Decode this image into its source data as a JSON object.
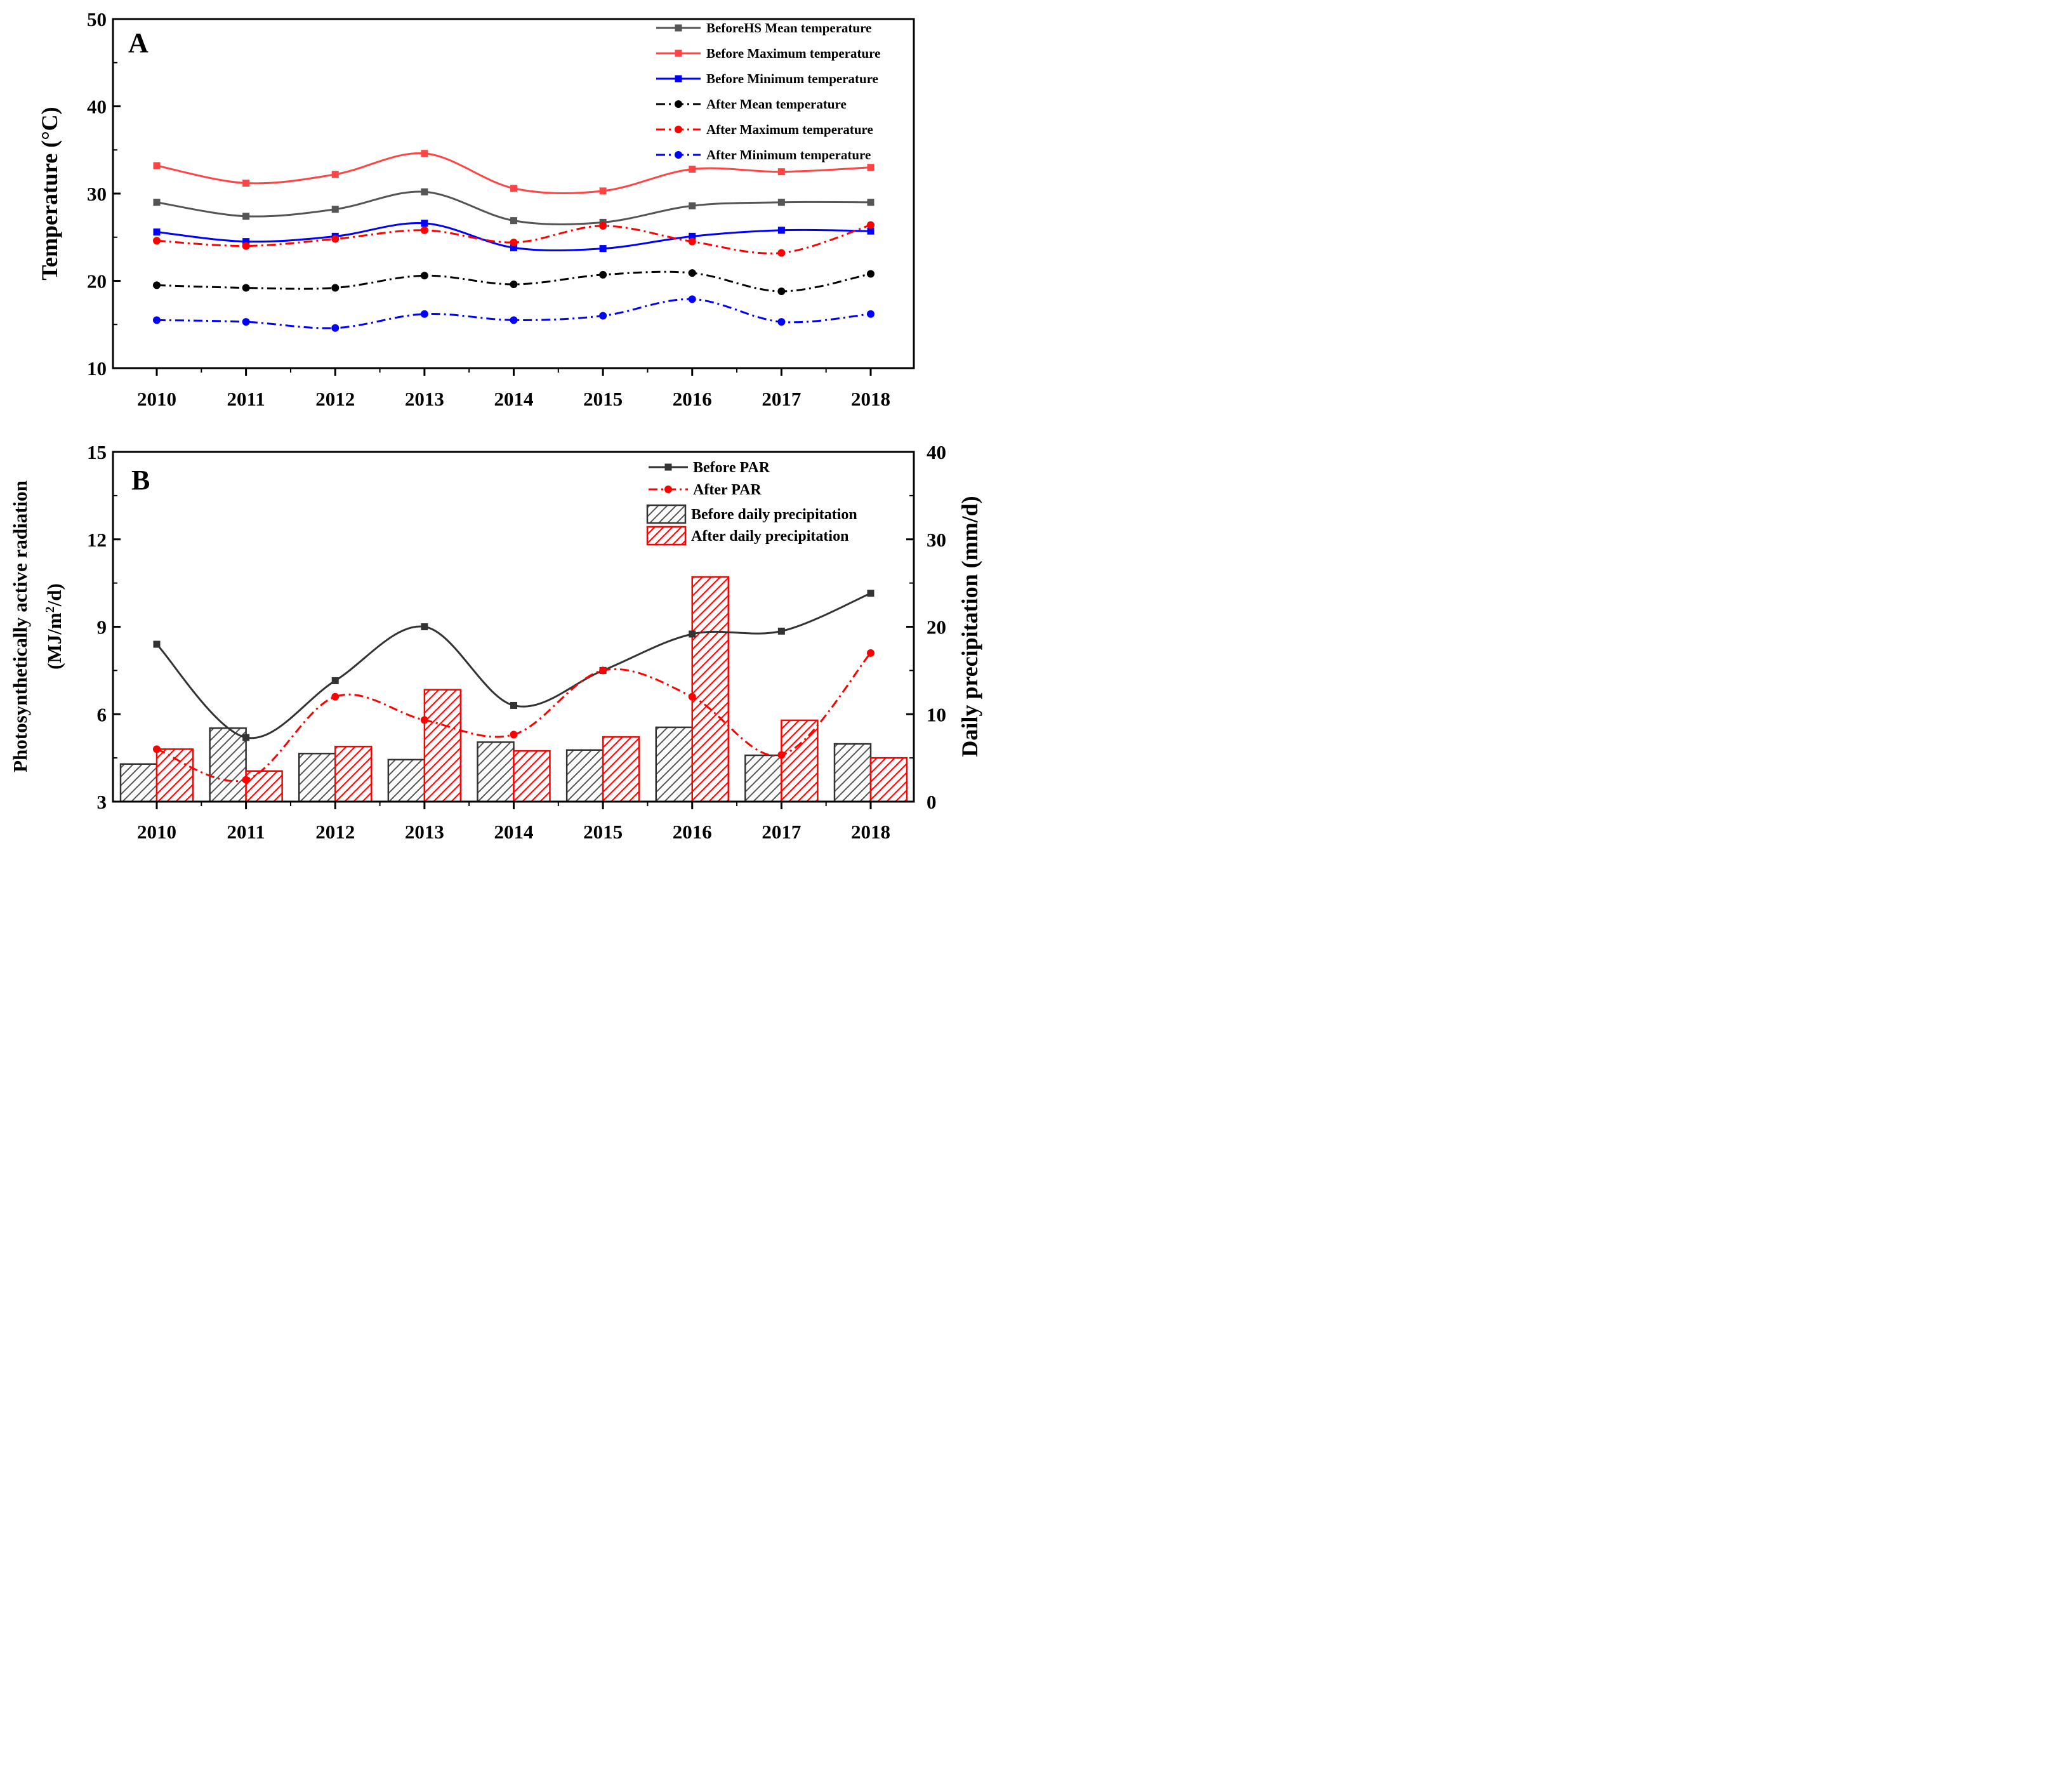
{
  "chart_data": [
    {
      "type": "line",
      "panel_label": "A",
      "ylabel": "Temperature (°C)",
      "ylim": [
        10,
        50
      ],
      "yticks": [
        "10",
        "20",
        "30",
        "40",
        "50"
      ],
      "categories": [
        "2010",
        "2011",
        "2012",
        "2013",
        "2014",
        "2015",
        "2016",
        "2017",
        "2018"
      ],
      "series": [
        {
          "name": "BeforeHS Mean temperature",
          "color": "#555555",
          "marker": "square",
          "style": "solid",
          "values": [
            29.0,
            27.4,
            28.2,
            30.2,
            26.9,
            26.7,
            28.6,
            29.0,
            29.0
          ]
        },
        {
          "name": "Before Maximum temperature",
          "color": "#ff4444",
          "marker": "square",
          "style": "solid",
          "values": [
            33.2,
            31.2,
            32.2,
            34.6,
            30.6,
            30.3,
            32.8,
            32.5,
            33.0
          ]
        },
        {
          "name": "Before Minimum temperature",
          "color": "#0000ff",
          "marker": "square",
          "style": "solid",
          "values": [
            25.6,
            24.5,
            25.1,
            26.6,
            23.8,
            23.7,
            25.1,
            25.8,
            25.7
          ]
        },
        {
          "name": "After Mean temperature",
          "color": "#000000",
          "marker": "circle",
          "style": "dashdot",
          "values": [
            19.5,
            19.2,
            19.2,
            20.6,
            19.6,
            20.7,
            20.9,
            18.8,
            20.8
          ]
        },
        {
          "name": "After Maximum temperature",
          "color": "#ff0000",
          "marker": "circle",
          "style": "dashdot",
          "values": [
            24.6,
            24.0,
            24.8,
            25.8,
            24.4,
            26.3,
            24.5,
            23.2,
            26.4
          ]
        },
        {
          "name": "After Minimum temperature",
          "color": "#0000ff",
          "marker": "circle",
          "style": "dashdot",
          "values": [
            15.5,
            15.3,
            14.6,
            16.2,
            15.5,
            16.0,
            17.9,
            15.3,
            16.2
          ]
        }
      ],
      "legend": "top-right"
    },
    {
      "type": "bar",
      "panel_label": "B",
      "ylabel_line1": "Photosynthetically active radiation",
      "ylabel_line2_pre": "(MJ/m",
      "ylabel_line2_sup": "2",
      "ylabel_line2_post": "/d)",
      "ylim": [
        3,
        15
      ],
      "yticks": [
        "3",
        "6",
        "9",
        "12",
        "15"
      ],
      "y2label": "Daily precipitation (mm/d)",
      "y2lim": [
        0,
        40
      ],
      "y2ticks": [
        "0",
        "10",
        "20",
        "30",
        "40"
      ],
      "categories": [
        "2010",
        "2011",
        "2012",
        "2013",
        "2014",
        "2015",
        "2016",
        "2017",
        "2018"
      ],
      "bars": [
        {
          "name": "Before daily precipitation",
          "axis": "right",
          "color": "#333333",
          "hatch": "diagonal",
          "values": [
            4.3,
            8.4,
            5.5,
            4.8,
            6.8,
            5.9,
            8.5,
            5.3,
            6.6
          ]
        },
        {
          "name": "After daily precipitation",
          "axis": "right",
          "color": "#ff0000",
          "hatch": "diagonal",
          "values": [
            6.0,
            3.5,
            6.3,
            12.8,
            5.8,
            7.4,
            25.7,
            9.3,
            5.0
          ]
        }
      ],
      "series": [
        {
          "name": "Before PAR",
          "axis": "left",
          "color": "#333333",
          "marker": "square",
          "style": "solid",
          "values": [
            8.4,
            5.2,
            7.15,
            9.0,
            6.3,
            7.5,
            8.75,
            8.85,
            10.15
          ]
        },
        {
          "name": "After PAR",
          "axis": "left",
          "color": "#ff0000",
          "marker": "circle",
          "style": "dashdot",
          "values": [
            4.8,
            3.75,
            6.6,
            5.8,
            5.3,
            7.5,
            6.6,
            4.6,
            8.1
          ]
        }
      ],
      "legend": "top-right"
    }
  ]
}
